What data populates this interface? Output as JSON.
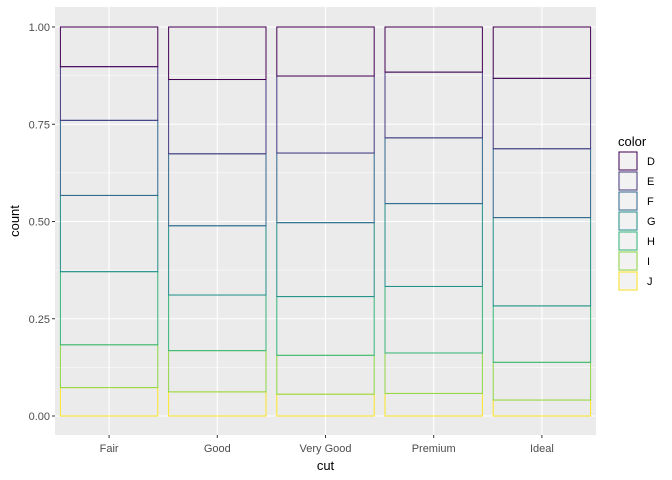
{
  "chart_data": {
    "type": "bar",
    "stacked": true,
    "position": "fill",
    "categories": [
      "Fair",
      "Good",
      "Very Good",
      "Premium",
      "Ideal"
    ],
    "series": [
      {
        "name": "D",
        "color": "#440154",
        "values": [
          0.102,
          0.135,
          0.126,
          0.116,
          0.132
        ]
      },
      {
        "name": "E",
        "color": "#443A83",
        "values": [
          0.138,
          0.191,
          0.198,
          0.169,
          0.181
        ]
      },
      {
        "name": "F",
        "color": "#31688E",
        "values": [
          0.193,
          0.185,
          0.179,
          0.169,
          0.177
        ]
      },
      {
        "name": "G",
        "color": "#21908C",
        "values": [
          0.196,
          0.178,
          0.19,
          0.213,
          0.227
        ]
      },
      {
        "name": "H",
        "color": "#35B779",
        "values": [
          0.188,
          0.143,
          0.151,
          0.171,
          0.145
        ]
      },
      {
        "name": "I",
        "color": "#8FD744",
        "values": [
          0.11,
          0.106,
          0.1,
          0.104,
          0.097
        ]
      },
      {
        "name": "J",
        "color": "#FDE725",
        "values": [
          0.073,
          0.062,
          0.056,
          0.058,
          0.041
        ]
      }
    ],
    "xlabel": "cut",
    "ylabel": "count",
    "ylim": [
      0,
      1
    ],
    "y_ticks": [
      "0.00",
      "0.25",
      "0.50",
      "0.75",
      "1.00"
    ],
    "legend": {
      "title": "color",
      "placement": "right"
    },
    "grid": true,
    "panel_background": "#EBEBEB",
    "bar_fill": "none"
  }
}
